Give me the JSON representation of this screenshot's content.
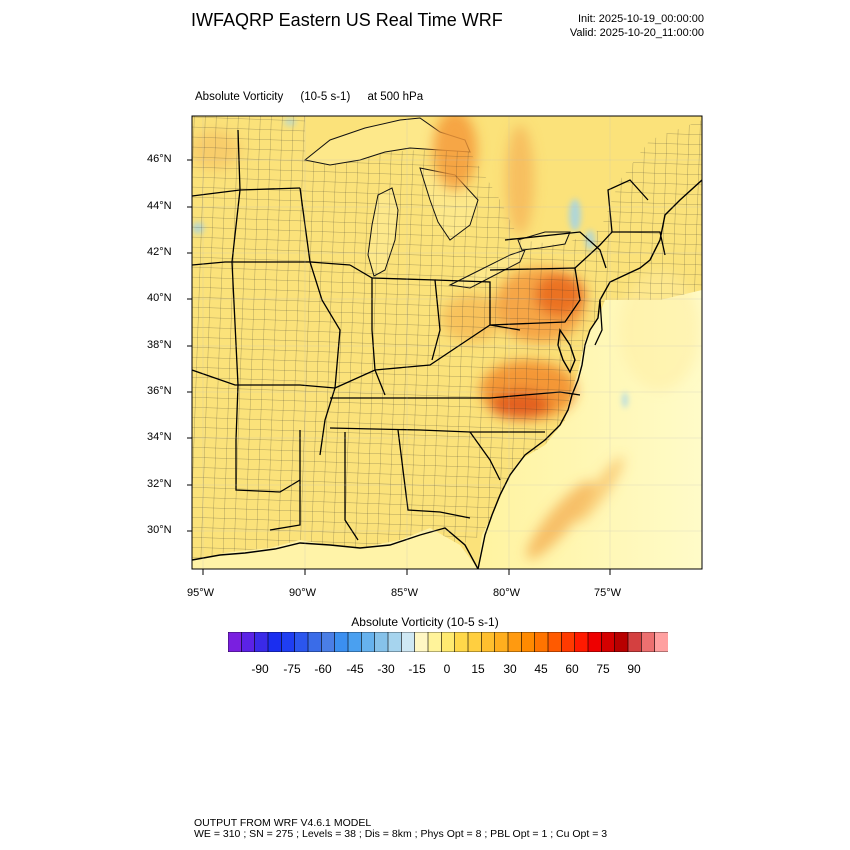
{
  "header": {
    "title": "IWFAQRP Eastern US Real Time WRF",
    "init": "Init: 2025-10-19_00:00:00",
    "valid": "Valid: 2025-10-20_11:00:00"
  },
  "field": {
    "name": "Absolute Vorticity",
    "units": "(10-5 s-1)",
    "level": "at   500 hPa"
  },
  "map": {
    "lat_labels": [
      "46°N",
      "44°N",
      "42°N",
      "40°N",
      "38°N",
      "36°N",
      "34°N",
      "32°N",
      "30°N"
    ],
    "lon_labels": [
      "95°W",
      "90°W",
      "85°W",
      "80°W",
      "75°W"
    ],
    "colors": {
      "land_base": "#fbe27a",
      "ocean_base": "#fff6b0",
      "max_vort": "#f08a1c",
      "peak_vort": "#e9661a",
      "neg_vort": "#9dd3ee"
    }
  },
  "colorbar": {
    "title": "Absolute Vorticity  (10-5 s-1)",
    "colors": [
      "#7a1fe0",
      "#5b22e6",
      "#3a2ae8",
      "#1a2ef0",
      "#1f3ef2",
      "#2b56ee",
      "#3a6ce8",
      "#4a7ee6",
      "#3b8ff0",
      "#4aa0f0",
      "#66b2ee",
      "#86c2ea",
      "#a6d4ee",
      "#cfe8f4",
      "#fff7c4",
      "#fff39a",
      "#ffea70",
      "#ffd84a",
      "#ffcf40",
      "#ffbf2e",
      "#ffae1e",
      "#ff9a10",
      "#ff8a00",
      "#ff7400",
      "#ff5a00",
      "#ff3a00",
      "#ff1a00",
      "#ee0000",
      "#d40000",
      "#b80000",
      "#d44040",
      "#ec7070",
      "#ffa0a0"
    ],
    "tick_labels": [
      "-90",
      "-75",
      "-60",
      "-45",
      "-30",
      "-15",
      "0",
      "15",
      "30",
      "45",
      "60",
      "75",
      "90"
    ]
  },
  "footer": {
    "line1": "OUTPUT FROM WRF V4.6.1 MODEL",
    "line2": "WE = 310 ; SN = 275 ; Levels = 38 ; Dis = 8km ; Phys Opt = 8 ; PBL Opt = 1 ; Cu Opt = 3"
  }
}
